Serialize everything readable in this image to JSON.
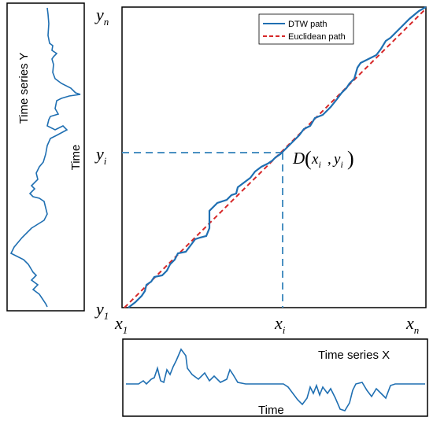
{
  "left_panel": {
    "title": "Time series Y",
    "axis_label": "Time"
  },
  "bottom_panel": {
    "title": "Time series X",
    "axis_label": "Time"
  },
  "legend": {
    "dtw": "DTW path",
    "euclid": "Euclidean path"
  },
  "math": {
    "y_n": "y",
    "y_n_sub": "n",
    "y_i": "y",
    "y_i_sub": "i",
    "y_1": "y",
    "y_1_sub": "1",
    "x_1": "x",
    "x_1_sub": "1",
    "x_i": "x",
    "x_i_sub": "i",
    "x_n": "x",
    "x_n_sub": "n",
    "point_name": "D",
    "point_x": "x",
    "point_x_sub": "i",
    "point_y": "y",
    "point_y_sub": "i"
  },
  "colors": {
    "dtw": "#1f6fb2",
    "euclid": "#d62728",
    "dash_guide": "#4a90c2",
    "frame": "#000000"
  }
}
